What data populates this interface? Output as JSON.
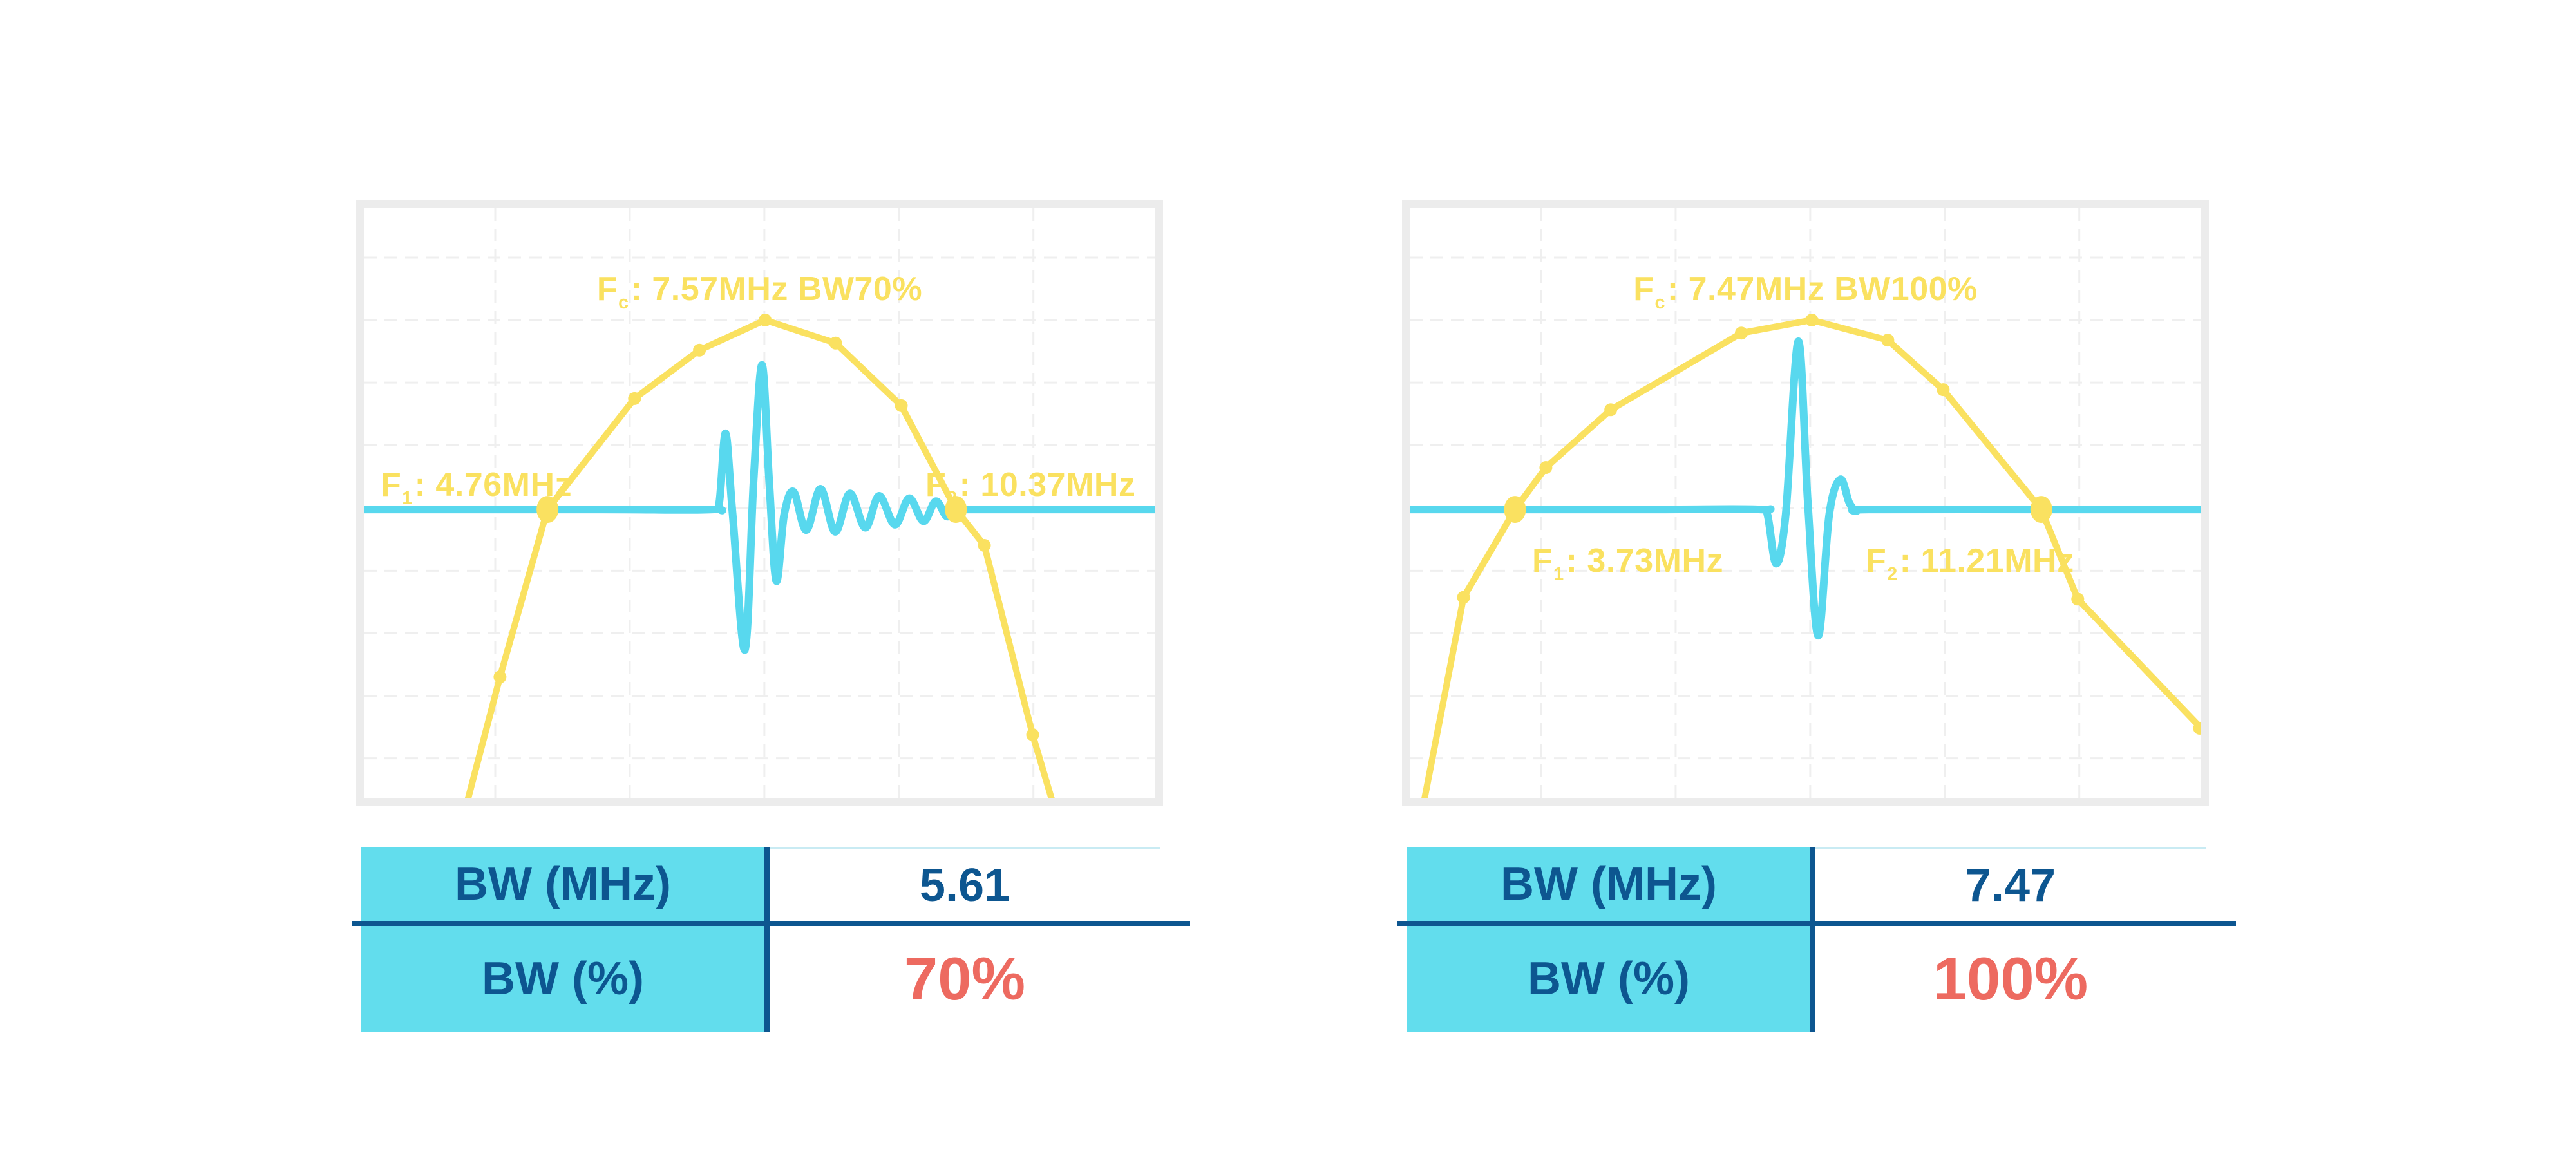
{
  "colors": {
    "yellow": "#FAE160",
    "cyan_wave": "#58D8EE",
    "table_cyan": "#62DDED",
    "navy": "#0D5690",
    "red": "#ED6A60",
    "grid": "#EFEFEF",
    "frame": "#ECECEC",
    "value_top_border": "#C9EBF3"
  },
  "charts": [
    {
      "name": "bw70",
      "labels": {
        "fc": {
          "prefix": "F",
          "sub": "c",
          "rest": ": 7.57MHz BW70%"
        },
        "f1": {
          "prefix": "F",
          "sub": "1",
          "rest": ": 4.76MHz"
        },
        "f2": {
          "prefix": "F",
          "sub": "2",
          "rest": ": 10.37MHz"
        }
      },
      "table": {
        "rows": [
          {
            "label": "BW (MHz)",
            "value": "5.61",
            "emphasis": false
          },
          {
            "label": "BW (%)",
            "value": "70%",
            "emphasis": true
          }
        ]
      }
    },
    {
      "name": "bw100",
      "labels": {
        "fc": {
          "prefix": "F",
          "sub": "c",
          "rest": ": 7.47MHz BW100%"
        },
        "f1": {
          "prefix": "F",
          "sub": "1",
          "rest": ": 3.73MHz"
        },
        "f2": {
          "prefix": "F",
          "sub": "2",
          "rest": ": 11.21MHz"
        }
      },
      "table": {
        "rows": [
          {
            "label": "BW (MHz)",
            "value": "7.47",
            "emphasis": false
          },
          {
            "label": "BW (%)",
            "value": "100%",
            "emphasis": true
          }
        ]
      }
    }
  ],
  "chart_data": [
    {
      "type": "line",
      "title": "Fc: 7.57MHz BW70%",
      "annotations": {
        "fc_mhz": 7.57,
        "bw_percent": 70,
        "f1_mhz": 4.76,
        "f2_mhz": 10.37,
        "bw_mhz": 5.61
      },
      "axes": {
        "x": "frequency (unlabeled, approx 2.2-13.1 MHz)",
        "y": "amplitude (unlabeled)",
        "grid": "dashed",
        "note": "points are [x_fraction, y_fraction] of plot area, y measured downward from top"
      },
      "grid": {
        "v": [
          0.166,
          0.336,
          0.506,
          0.676,
          0.846
        ],
        "h": [
          0.084,
          0.19,
          0.296,
          0.402,
          0.509,
          0.615,
          0.721,
          0.827,
          0.933
        ]
      },
      "baseline": 0.511,
      "series": [
        {
          "name": "spectrum",
          "style": "straight",
          "points": [
            [
              0.128,
              1.02
            ],
            [
              0.172,
              0.795
            ],
            [
              0.232,
              0.511
            ],
            [
              0.342,
              0.323
            ],
            [
              0.424,
              0.241
            ],
            [
              0.507,
              0.19
            ],
            [
              0.596,
              0.229
            ],
            [
              0.679,
              0.335
            ],
            [
              0.748,
              0.511
            ],
            [
              0.784,
              0.572
            ],
            [
              0.845,
              0.893
            ],
            [
              0.873,
              1.02
            ]
          ],
          "small_markers": [
            [
              0.172,
              0.795
            ],
            [
              0.342,
              0.323
            ],
            [
              0.424,
              0.241
            ],
            [
              0.507,
              0.19
            ],
            [
              0.596,
              0.229
            ],
            [
              0.679,
              0.335
            ],
            [
              0.784,
              0.572
            ],
            [
              0.845,
              0.893
            ]
          ],
          "crossing_markers": [
            [
              0.232,
              0.511
            ],
            [
              0.748,
              0.511
            ]
          ]
        },
        {
          "name": "pulse-waveform",
          "style": "smooth",
          "points": [
            [
              0,
              0.511
            ],
            [
              0.3,
              0.511
            ],
            [
              0.44,
              0.511
            ],
            [
              0.449,
              0.5
            ],
            [
              0.457,
              0.382
            ],
            [
              0.466,
              0.52
            ],
            [
              0.4815,
              0.749
            ],
            [
              0.4925,
              0.46
            ],
            [
              0.503,
              0.266
            ],
            [
              0.512,
              0.46
            ],
            [
              0.521,
              0.632
            ],
            [
              0.531,
              0.52
            ],
            [
              0.543,
              0.481
            ],
            [
              0.559,
              0.546
            ],
            [
              0.577,
              0.476
            ],
            [
              0.5955,
              0.549
            ],
            [
              0.614,
              0.484
            ],
            [
              0.6335,
              0.542
            ],
            [
              0.651,
              0.488
            ],
            [
              0.671,
              0.537
            ],
            [
              0.689,
              0.492
            ],
            [
              0.707,
              0.531
            ],
            [
              0.7225,
              0.497
            ],
            [
              0.7365,
              0.523
            ],
            [
              0.748,
              0.509
            ],
            [
              0.76,
              0.511
            ],
            [
              0.88,
              0.511
            ],
            [
              1.0,
              0.511
            ]
          ]
        }
      ]
    },
    {
      "type": "line",
      "title": "Fc: 7.47MHz BW100%",
      "annotations": {
        "fc_mhz": 7.47,
        "bw_percent": 100,
        "f1_mhz": 3.73,
        "f2_mhz": 11.21,
        "bw_mhz": 7.47
      },
      "axes": {
        "x": "frequency (unlabeled, approx 2.2-13.5 MHz)",
        "y": "amplitude (unlabeled)",
        "grid": "dashed",
        "note": "points are [x_fraction, y_fraction] of plot area, y measured downward from top"
      },
      "grid": {
        "v": [
          0.166,
          0.336,
          0.506,
          0.676,
          0.846
        ],
        "h": [
          0.084,
          0.19,
          0.296,
          0.402,
          0.509,
          0.615,
          0.721,
          0.827,
          0.933
        ]
      },
      "baseline": 0.511,
      "series": [
        {
          "name": "spectrum",
          "style": "straight",
          "points": [
            [
              0.016,
              1.02
            ],
            [
              0.068,
              0.66
            ],
            [
              0.133,
              0.511
            ],
            [
              0.172,
              0.44
            ],
            [
              0.254,
              0.342
            ],
            [
              0.419,
              0.212
            ],
            [
              0.508,
              0.19
            ],
            [
              0.604,
              0.224
            ],
            [
              0.674,
              0.308
            ],
            [
              0.798,
              0.511
            ],
            [
              0.844,
              0.663
            ],
            [
              1.0,
              0.882
            ]
          ],
          "small_markers": [
            [
              0.068,
              0.66
            ],
            [
              0.172,
              0.44
            ],
            [
              0.254,
              0.342
            ],
            [
              0.419,
              0.212
            ],
            [
              0.508,
              0.19
            ],
            [
              0.604,
              0.224
            ],
            [
              0.674,
              0.308
            ],
            [
              0.844,
              0.663
            ],
            [
              0.998,
              0.882
            ]
          ],
          "crossing_markers": [
            [
              0.133,
              0.511
            ],
            [
              0.798,
              0.511
            ]
          ]
        },
        {
          "name": "pulse-waveform",
          "style": "smooth",
          "points": [
            [
              0,
              0.511
            ],
            [
              0.3,
              0.511
            ],
            [
              0.443,
              0.511
            ],
            [
              0.452,
              0.52
            ],
            [
              0.463,
              0.603
            ],
            [
              0.475,
              0.52
            ],
            [
              0.491,
              0.226
            ],
            [
              0.503,
              0.5
            ],
            [
              0.516,
              0.725
            ],
            [
              0.53,
              0.52
            ],
            [
              0.544,
              0.46
            ],
            [
              0.5555,
              0.5
            ],
            [
              0.565,
              0.513
            ],
            [
              0.58,
              0.511
            ],
            [
              0.8,
              0.511
            ],
            [
              1.0,
              0.511
            ]
          ]
        }
      ]
    }
  ]
}
